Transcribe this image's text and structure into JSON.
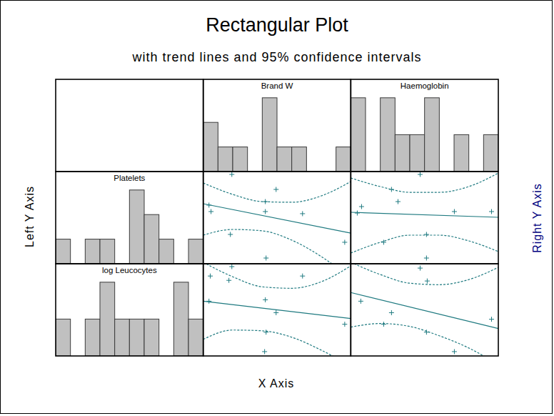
{
  "chart_data": {
    "type": "scatter_matrix",
    "title": "Rectangular Plot",
    "subtitle": "with trend lines and 95% confidence intervals",
    "x_label": "X Axis",
    "y_label": "Left Y Axis",
    "y2_label": "Right Y Axis",
    "tick_labels": false,
    "column_histograms": [
      {
        "type": "histogram",
        "name": "Brand W",
        "bins": [
          0,
          1,
          2,
          3,
          4,
          5,
          6,
          7,
          8,
          9,
          10
        ],
        "counts": [
          2,
          1,
          1,
          0,
          3,
          1,
          1,
          0,
          0,
          1
        ],
        "xlim": [
          0,
          10
        ],
        "ylim": [
          0,
          3.75
        ],
        "color": "#c0c0c0"
      },
      {
        "type": "histogram",
        "name": "Haemoglobin",
        "bins": [
          0,
          1,
          2,
          3,
          4,
          5,
          6,
          7,
          8,
          9,
          10
        ],
        "counts": [
          2,
          0,
          2,
          1,
          1,
          2,
          0,
          1,
          0,
          1
        ],
        "xlim": [
          0,
          10
        ],
        "ylim": [
          0,
          2.5
        ],
        "color": "#c0c0c0"
      }
    ],
    "row_histograms": [
      {
        "type": "histogram",
        "name": "Platelets",
        "bins": [
          0,
          1,
          2,
          3,
          4,
          5,
          6,
          7,
          8,
          9,
          10
        ],
        "counts": [
          1,
          0,
          1,
          1,
          0,
          3,
          2,
          1,
          0,
          1
        ],
        "xlim": [
          0,
          10
        ],
        "ylim": [
          0,
          3.75
        ],
        "color": "#c0c0c0"
      },
      {
        "type": "histogram",
        "name": "log Leucocytes",
        "bins": [
          0,
          1,
          2,
          3,
          4,
          5,
          6,
          7,
          8,
          9,
          10
        ],
        "counts": [
          1,
          0,
          1,
          2,
          1,
          1,
          1,
          0,
          2,
          1
        ],
        "xlim": [
          0,
          10
        ],
        "ylim": [
          0,
          2.5
        ],
        "color": "#c0c0c0"
      }
    ],
    "scatters": [
      [
        {
          "type": "scatter",
          "marker": "plus",
          "color": "#1f7a80",
          "xlim": [
            0,
            10
          ],
          "ylim": [
            0,
            10
          ],
          "x": [
            1.94,
            4.94,
            4.21,
            0.39,
            0.53,
            4.21,
            6.73,
            1.84,
            9.59,
            4.26
          ],
          "y": [
            9.69,
            8.06,
            6.74,
            6.36,
            5.66,
            5.66,
            5.43,
            3.18,
            2.33,
            0.62
          ],
          "trend": {
            "line_style": "solid",
            "x": [
              0,
              10
            ],
            "y": [
              6.51,
              3.33
            ]
          },
          "ci_upper": {
            "line_style": "dashed",
            "x": [
              0,
              2,
              4,
              6,
              8,
              10
            ],
            "y": [
              8.76,
              7.52,
              6.74,
              6.67,
              7.36,
              8.91
            ]
          },
          "ci_lower": {
            "line_style": "dashed",
            "x": [
              0,
              2,
              4,
              6,
              8,
              10
            ],
            "y": [
              3.1,
              3.72,
              3.57,
              2.56,
              0.78,
              -1.55
            ]
          }
        },
        {
          "type": "scatter",
          "marker": "plus",
          "color": "#1f7a80",
          "xlim": [
            0,
            10
          ],
          "ylim": [
            0,
            10
          ],
          "x": [
            4.7,
            2.76,
            3.2,
            0.73,
            0.44,
            7.02,
            9.54,
            5.13,
            2.23,
            5.13
          ],
          "y": [
            9.69,
            8.06,
            6.74,
            6.2,
            5.5,
            5.66,
            5.66,
            3.18,
            2.33,
            0.62
          ],
          "trend": {
            "line_style": "solid",
            "x": [
              0,
              10
            ],
            "y": [
              5.58,
              5.04
            ]
          },
          "ci_upper": {
            "line_style": "dashed",
            "x": [
              0,
              2,
              4,
              6,
              8,
              10
            ],
            "y": [
              9.3,
              8.37,
              7.75,
              7.75,
              8.37,
              9.84
            ]
          },
          "ci_lower": {
            "line_style": "dashed",
            "x": [
              0,
              2,
              4,
              6,
              8,
              10
            ],
            "y": [
              1.16,
              2.33,
              3.1,
              3.1,
              2.48,
              1.32
            ]
          }
        }
      ],
      [
        {
          "type": "scatter",
          "marker": "plus",
          "color": "#1f7a80",
          "xlim": [
            0,
            10
          ],
          "ylim": [
            0,
            10
          ],
          "x": [
            1.94,
            0.48,
            1.74,
            6.73,
            4.21,
            0.39,
            4.94,
            9.59,
            4.26,
            4.16
          ],
          "y": [
            9.69,
            8.67,
            8.2,
            8.67,
            6.09,
            5.94,
            4.69,
            3.44,
            2.58,
            0.47
          ],
          "trend": {
            "line_style": "solid",
            "x": [
              0,
              10
            ],
            "y": [
              5.94,
              4.06
            ]
          },
          "ci_upper": {
            "line_style": "dashed",
            "x": [
              0,
              2,
              4,
              6,
              8,
              10
            ],
            "y": [
              10.16,
              8.59,
              7.5,
              7.34,
              8.05,
              9.77
            ]
          },
          "ci_lower": {
            "line_style": "dashed",
            "x": [
              0,
              2,
              4,
              6,
              8,
              10
            ],
            "y": [
              1.8,
              2.81,
              2.73,
              2.03,
              0.63,
              -1.09
            ]
          }
        },
        {
          "type": "scatter",
          "marker": "plus",
          "color": "#1f7a80",
          "xlim": [
            0,
            10
          ],
          "ylim": [
            0,
            10
          ],
          "x": [
            4.7,
            5.18,
            0.68,
            2.76,
            9.54,
            2.23,
            5.13,
            7.02
          ],
          "y": [
            9.53,
            8.13,
            5.94,
            4.69,
            3.98,
            3.44,
            2.58,
            0.47
          ],
          "trend": {
            "line_style": "solid",
            "x": [
              0,
              10
            ],
            "y": [
              6.88,
              2.97
            ]
          },
          "ci_upper": {
            "line_style": "dashed",
            "x": [
              0,
              2,
              4,
              6,
              8,
              10
            ],
            "y": [
              10.16,
              8.83,
              7.89,
              7.73,
              8.28,
              9.61
            ]
          },
          "ci_lower": {
            "line_style": "dashed",
            "x": [
              0,
              2,
              4,
              6,
              8,
              10
            ],
            "y": [
              3.13,
              3.52,
              3.2,
              2.19,
              0.86,
              -0.94
            ]
          }
        }
      ]
    ]
  }
}
